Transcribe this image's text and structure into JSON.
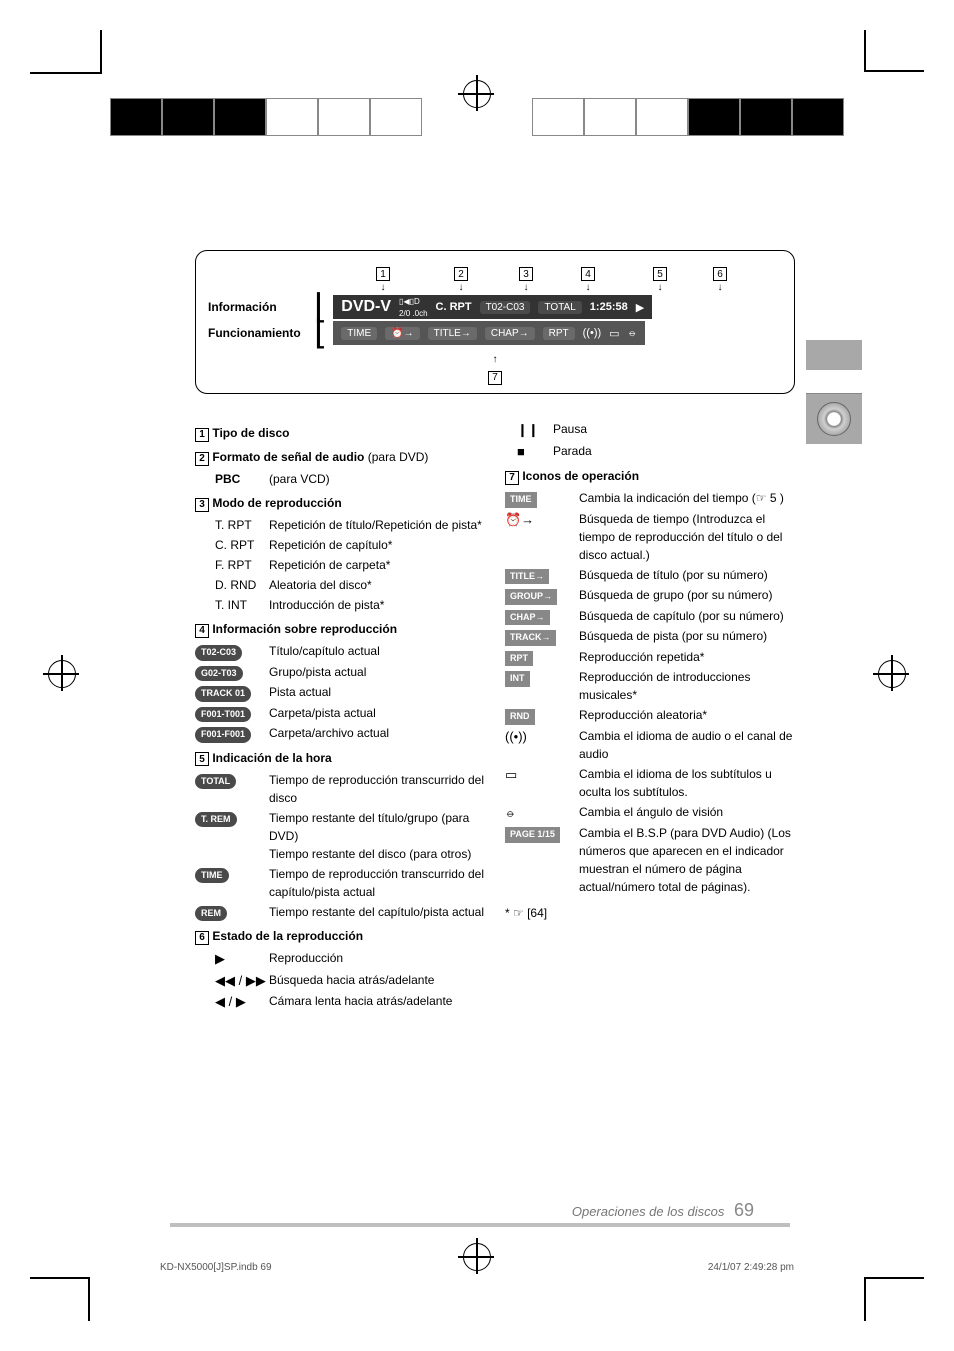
{
  "diagram": {
    "label_info": "Información",
    "label_func": "Funcionamiento",
    "numbers": [
      "1",
      "2",
      "3",
      "4",
      "5",
      "6",
      "7"
    ],
    "lcd_info": {
      "title": "DVD-V",
      "dolby": "▯◀▯D",
      "channels": "2/0 .0ch",
      "mode": "C. RPT",
      "track": "T02-C03",
      "total_label": "TOTAL",
      "time": "1:25:58",
      "play": "▶"
    },
    "lcd_func": {
      "items": [
        "TIME",
        "⏰→",
        "TITLE→",
        "CHAP→",
        "RPT",
        "((•))",
        "▭",
        "⦵"
      ]
    }
  },
  "left_col": {
    "s1": {
      "num": "1",
      "head": "Tipo de disco"
    },
    "s2": {
      "num": "2",
      "head": "Formato de señal de audio",
      "note": "(para DVD)",
      "sub": "PBC",
      "sub_note": "(para VCD)"
    },
    "s3": {
      "num": "3",
      "head": "Modo de reproducción",
      "rows": [
        {
          "k": "T. RPT",
          "v": "Repetición de título/Repetición de pista*"
        },
        {
          "k": "C. RPT",
          "v": "Repetición de capítulo*"
        },
        {
          "k": "F. RPT",
          "v": "Repetición de carpeta*"
        },
        {
          "k": "D. RND",
          "v": "Aleatoria del disco*"
        },
        {
          "k": "T. INT",
          "v": "Introducción de pista*"
        }
      ]
    },
    "s4": {
      "num": "4",
      "head": "Información sobre reproducción",
      "rows": [
        {
          "k": "T02-C03",
          "v": "Título/capítulo actual"
        },
        {
          "k": "G02-T03",
          "v": "Grupo/pista actual"
        },
        {
          "k": "TRACK 01",
          "v": "Pista actual"
        },
        {
          "k": "F001-T001",
          "v": "Carpeta/pista actual"
        },
        {
          "k": "F001-F001",
          "v": "Carpeta/archivo actual"
        }
      ]
    },
    "s5": {
      "num": "5",
      "head": "Indicación de la hora",
      "rows": [
        {
          "k": "TOTAL",
          "v": "Tiempo de reproducción transcurrido del disco"
        },
        {
          "k": "T. REM",
          "v": "Tiempo restante del título/grupo (para DVD)\nTiempo restante del disco (para otros)"
        },
        {
          "k": "TIME",
          "v": "Tiempo de reproducción transcurrido del capítulo/pista actual"
        },
        {
          "k": "REM",
          "v": "Tiempo restante del capítulo/pista actual"
        }
      ]
    },
    "s6": {
      "num": "6",
      "head": "Estado de la reproducción",
      "rows": [
        {
          "k": "▶",
          "v": "Reproducción"
        },
        {
          "k": "◀◀ / ▶▶",
          "v": "Búsqueda hacia atrás/adelante"
        },
        {
          "k": "◀ / ▶",
          "v": "Cámara lenta hacia atrás/adelante"
        }
      ]
    }
  },
  "right_col": {
    "top": [
      {
        "k": "❙❙",
        "v": "Pausa"
      },
      {
        "k": "■",
        "v": "Parada"
      }
    ],
    "s7": {
      "num": "7",
      "head": "Iconos de operación",
      "rows": [
        {
          "k": "TIME",
          "t": "rect",
          "v": "Cambia la indicación del tiempo (☞ 5 )"
        },
        {
          "k": "⏰→",
          "t": "sym",
          "v": "Búsqueda de tiempo (Introduzca el tiempo de reproducción del título o del disco actual.)"
        },
        {
          "k": "TITLE→",
          "t": "rect",
          "v": "Búsqueda de título (por su número)"
        },
        {
          "k": "GROUP→",
          "t": "rect",
          "v": "Búsqueda de grupo (por su número)"
        },
        {
          "k": "CHAP→",
          "t": "rect",
          "v": "Búsqueda de capítulo (por su número)"
        },
        {
          "k": "TRACK→",
          "t": "rect",
          "v": "Búsqueda de pista (por su número)"
        },
        {
          "k": "RPT",
          "t": "rect",
          "v": "Reproducción repetida*"
        },
        {
          "k": "INT",
          "t": "rect",
          "v": "Reproducción de introducciones musicales*"
        },
        {
          "k": "RND",
          "t": "rect",
          "v": "Reproducción aleatoria*"
        },
        {
          "k": "((•))",
          "t": "sym",
          "v": "Cambia el idioma de audio o el canal de audio"
        },
        {
          "k": "▭",
          "t": "sym",
          "v": "Cambia el idioma de los subtítulos u oculta los subtítulos."
        },
        {
          "k": "⦵",
          "t": "sym",
          "v": "Cambia el ángulo de visión"
        },
        {
          "k": "PAGE 1/15",
          "t": "rect",
          "v": "Cambia el B.S.P (para DVD Audio) (Los números que aparecen en el indicador muestran el número de página actual/número total de páginas)."
        }
      ],
      "note": "* ☞ [64]"
    }
  },
  "footer": {
    "text": "Operaciones de los discos",
    "page": "69"
  },
  "print": {
    "file": "KD-NX5000[J]SP.indb   69",
    "ts": "24/1/07   2:49:28 pm"
  }
}
